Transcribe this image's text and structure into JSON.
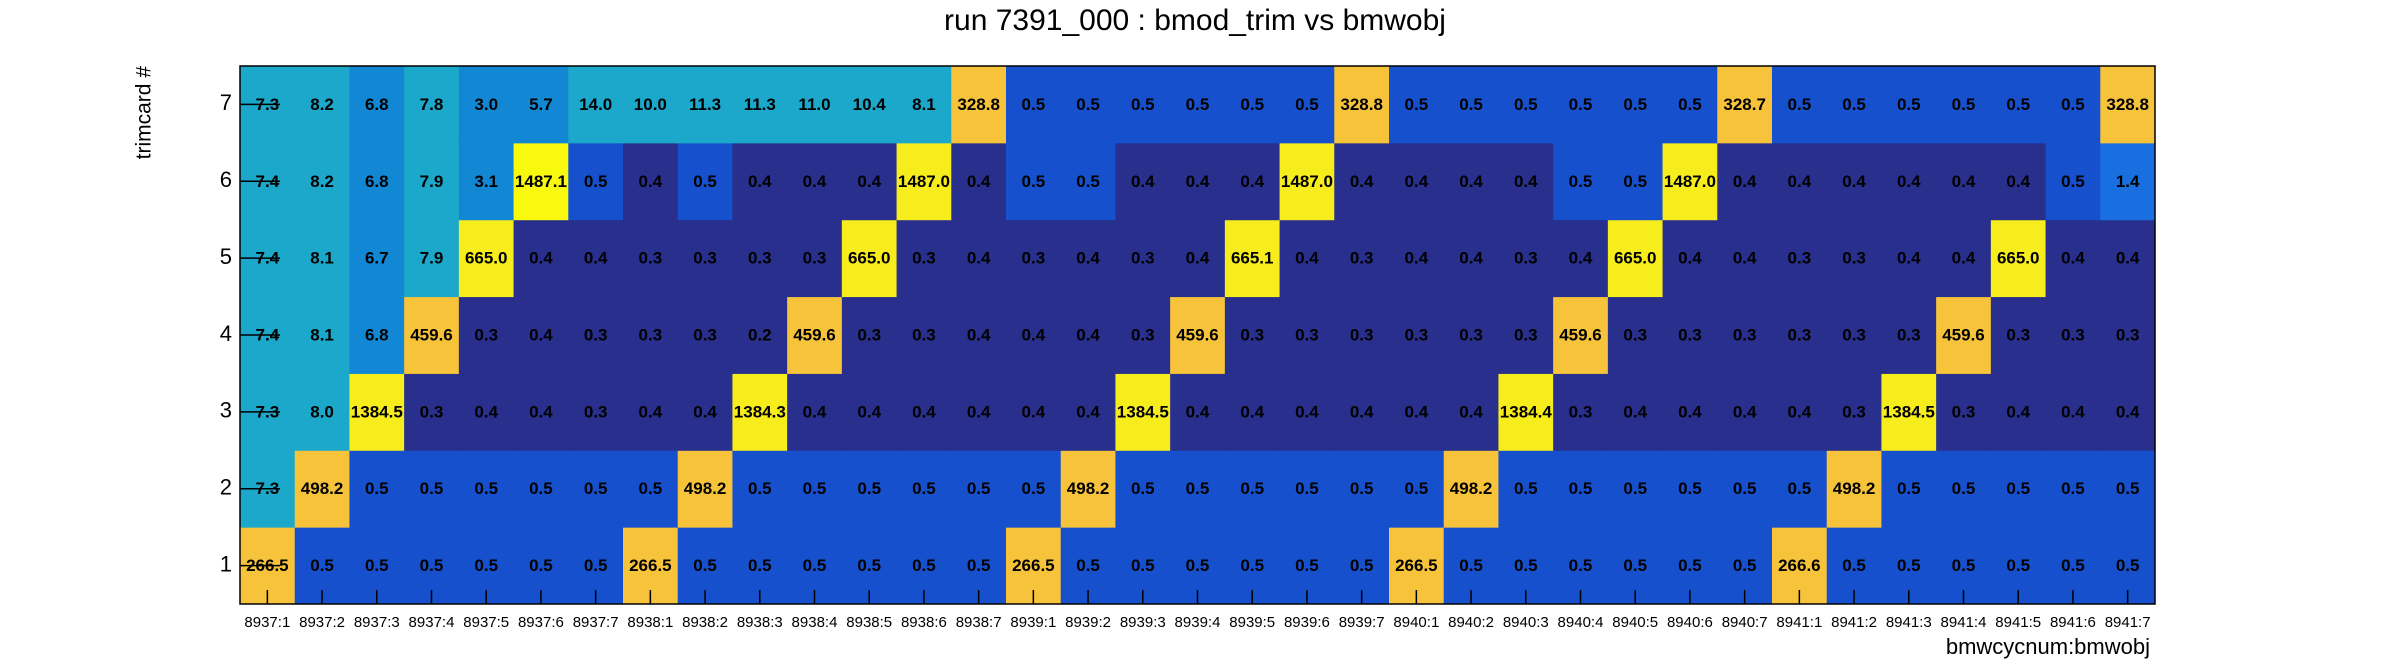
{
  "chart_data": {
    "type": "heatmap",
    "title": "run 7391_000 : bmod_trim vs bmwobj",
    "x_label": "bmwcycnum:bmwobj",
    "y_label": "trimcard #",
    "x_categories": [
      "8937:1",
      "8937:2",
      "8937:3",
      "8937:4",
      "8937:5",
      "8937:6",
      "8937:7",
      "8938:1",
      "8938:2",
      "8938:3",
      "8938:4",
      "8938:5",
      "8938:6",
      "8938:7",
      "8939:1",
      "8939:2",
      "8939:3",
      "8939:4",
      "8939:5",
      "8939:6",
      "8939:7",
      "8940:1",
      "8940:2",
      "8940:3",
      "8940:4",
      "8940:5",
      "8940:6",
      "8940:7",
      "8941:1",
      "8941:2",
      "8941:3",
      "8941:4",
      "8941:5",
      "8941:6",
      "8941:7"
    ],
    "y_categories": [
      "1",
      "2",
      "3",
      "4",
      "5",
      "6",
      "7"
    ],
    "z": [
      [
        266.5,
        0.5,
        0.5,
        0.5,
        0.5,
        0.5,
        0.5,
        266.5,
        0.5,
        0.5,
        0.5,
        0.5,
        0.5,
        0.5,
        266.5,
        0.5,
        0.5,
        0.5,
        0.5,
        0.5,
        0.5,
        266.5,
        0.5,
        0.5,
        0.5,
        0.5,
        0.5,
        0.5,
        266.6,
        0.5,
        0.5,
        0.5,
        0.5,
        0.5,
        0.5
      ],
      [
        7.3,
        498.2,
        0.5,
        0.5,
        0.5,
        0.5,
        0.5,
        0.5,
        498.2,
        0.5,
        0.5,
        0.5,
        0.5,
        0.5,
        0.5,
        498.2,
        0.5,
        0.5,
        0.5,
        0.5,
        0.5,
        0.5,
        498.2,
        0.5,
        0.5,
        0.5,
        0.5,
        0.5,
        0.5,
        498.2,
        0.5,
        0.5,
        0.5,
        0.5,
        0.5
      ],
      [
        7.3,
        8.0,
        1384.5,
        0.3,
        0.4,
        0.4,
        0.3,
        0.4,
        0.4,
        1384.3,
        0.4,
        0.4,
        0.4,
        0.4,
        0.4,
        0.4,
        1384.5,
        0.4,
        0.4,
        0.4,
        0.4,
        0.4,
        0.4,
        1384.4,
        0.3,
        0.4,
        0.4,
        0.4,
        0.4,
        0.3,
        1384.5,
        0.3,
        0.4,
        0.4,
        0.4
      ],
      [
        7.4,
        8.1,
        6.8,
        459.6,
        0.3,
        0.4,
        0.3,
        0.3,
        0.3,
        0.2,
        459.6,
        0.3,
        0.3,
        0.4,
        0.4,
        0.4,
        0.3,
        459.6,
        0.3,
        0.3,
        0.3,
        0.3,
        0.3,
        0.3,
        459.6,
        0.3,
        0.3,
        0.3,
        0.3,
        0.3,
        0.3,
        459.6,
        0.3,
        0.3,
        0.3
      ],
      [
        7.4,
        8.1,
        6.7,
        7.9,
        665.0,
        0.4,
        0.4,
        0.3,
        0.3,
        0.3,
        0.3,
        665.0,
        0.3,
        0.4,
        0.3,
        0.4,
        0.3,
        0.4,
        665.1,
        0.4,
        0.3,
        0.4,
        0.4,
        0.3,
        0.4,
        665.0,
        0.4,
        0.4,
        0.3,
        0.3,
        0.4,
        0.4,
        665.0,
        0.4,
        0.4
      ],
      [
        7.4,
        8.2,
        6.8,
        7.9,
        3.1,
        1487.1,
        0.5,
        0.4,
        0.5,
        0.4,
        0.4,
        0.4,
        1487.0,
        0.4,
        0.5,
        0.5,
        0.4,
        0.4,
        0.4,
        1487.0,
        0.4,
        0.4,
        0.4,
        0.4,
        0.5,
        0.5,
        1487.0,
        0.4,
        0.4,
        0.4,
        0.4,
        0.4,
        0.4,
        0.5,
        1.4
      ],
      [
        7.3,
        8.2,
        6.8,
        7.8,
        3.0,
        5.7,
        14.0,
        10.0,
        11.3,
        11.3,
        11.0,
        10.4,
        8.1,
        328.8,
        0.5,
        0.5,
        0.5,
        0.5,
        0.5,
        0.5,
        328.8,
        0.5,
        0.5,
        0.5,
        0.5,
        0.5,
        0.5,
        328.7,
        0.5,
        0.5,
        0.5,
        0.5,
        0.5,
        0.5,
        328.8
      ]
    ],
    "value_labels": [
      [
        "266.5",
        "0.5",
        "0.5",
        "0.5",
        "0.5",
        "0.5",
        "0.5",
        "266.5",
        "0.5",
        "0.5",
        "0.5",
        "0.5",
        "0.5",
        "0.5",
        "266.5",
        "0.5",
        "0.5",
        "0.5",
        "0.5",
        "0.5",
        "0.5",
        "266.5",
        "0.5",
        "0.5",
        "0.5",
        "0.5",
        "0.5",
        "0.5",
        "266.6",
        "0.5",
        "0.5",
        "0.5",
        "0.5",
        "0.5",
        "0.5"
      ],
      [
        "7.3",
        "498.2",
        "0.5",
        "0.5",
        "0.5",
        "0.5",
        "0.5",
        "0.5",
        "498.2",
        "0.5",
        "0.5",
        "0.5",
        "0.5",
        "0.5",
        "0.5",
        "498.2",
        "0.5",
        "0.5",
        "0.5",
        "0.5",
        "0.5",
        "0.5",
        "498.2",
        "0.5",
        "0.5",
        "0.5",
        "0.5",
        "0.5",
        "0.5",
        "498.2",
        "0.5",
        "0.5",
        "0.5",
        "0.5",
        "0.5"
      ],
      [
        "7.3",
        "8.0",
        "1384.5",
        "0.3",
        "0.4",
        "0.4",
        "0.3",
        "0.4",
        "0.4",
        "1384.3",
        "0.4",
        "0.4",
        "0.4",
        "0.4",
        "0.4",
        "0.4",
        "1384.5",
        "0.4",
        "0.4",
        "0.4",
        "0.4",
        "0.4",
        "0.4",
        "1384.4",
        "0.3",
        "0.4",
        "0.4",
        "0.4",
        "0.4",
        "0.3",
        "1384.5",
        "0.3",
        "0.4",
        "0.4",
        "0.4"
      ],
      [
        "7.4",
        "8.1",
        "6.8",
        "459.6",
        "0.3",
        "0.4",
        "0.3",
        "0.3",
        "0.3",
        "0.2",
        "459.6",
        "0.3",
        "0.3",
        "0.4",
        "0.4",
        "0.4",
        "0.3",
        "459.6",
        "0.3",
        "0.3",
        "0.3",
        "0.3",
        "0.3",
        "0.3",
        "459.6",
        "0.3",
        "0.3",
        "0.3",
        "0.3",
        "0.3",
        "0.3",
        "459.6",
        "0.3",
        "0.3",
        "0.3"
      ],
      [
        "7.4",
        "8.1",
        "6.7",
        "7.9",
        "665.0",
        "0.4",
        "0.4",
        "0.3",
        "0.3",
        "0.3",
        "0.3",
        "665.0",
        "0.3",
        "0.4",
        "0.3",
        "0.4",
        "0.3",
        "0.4",
        "665.1",
        "0.4",
        "0.3",
        "0.4",
        "0.4",
        "0.3",
        "0.4",
        "665.0",
        "0.4",
        "0.4",
        "0.3",
        "0.3",
        "0.4",
        "0.4",
        "665.0",
        "0.4",
        "0.4"
      ],
      [
        "7.4",
        "8.2",
        "6.8",
        "7.9",
        "3.1",
        "1487.1",
        "0.5",
        "0.4",
        "0.5",
        "0.4",
        "0.4",
        "0.4",
        "1487.0",
        "0.4",
        "0.5",
        "0.5",
        "0.4",
        "0.4",
        "0.4",
        "1487.0",
        "0.4",
        "0.4",
        "0.4",
        "0.4",
        "0.5",
        "0.5",
        "1487.0",
        "0.4",
        "0.4",
        "0.4",
        "0.4",
        "0.4",
        "0.4",
        "0.5",
        "1.4"
      ],
      [
        "7.3",
        "8.2",
        "6.8",
        "7.8",
        "3.0",
        "5.7",
        "14.0",
        "10.0",
        "11.3",
        "11.3",
        "11.0",
        "10.4",
        "8.1",
        "328.8",
        "0.5",
        "0.5",
        "0.5",
        "0.5",
        "0.5",
        "0.5",
        "328.8",
        "0.5",
        "0.5",
        "0.5",
        "0.5",
        "0.5",
        "0.5",
        "328.7",
        "0.5",
        "0.5",
        "0.5",
        "0.5",
        "0.5",
        "0.5",
        "328.8"
      ]
    ],
    "log_color_scale": true,
    "colormap": [
      "#282f8c",
      "#1650cc",
      "#1a6fe0",
      "#1287d4",
      "#1ba8ca",
      "#2bb4a6",
      "#6cbb80",
      "#b5bf5e",
      "#f6c33a",
      "#f7ec1c",
      "#f9f80f"
    ]
  }
}
